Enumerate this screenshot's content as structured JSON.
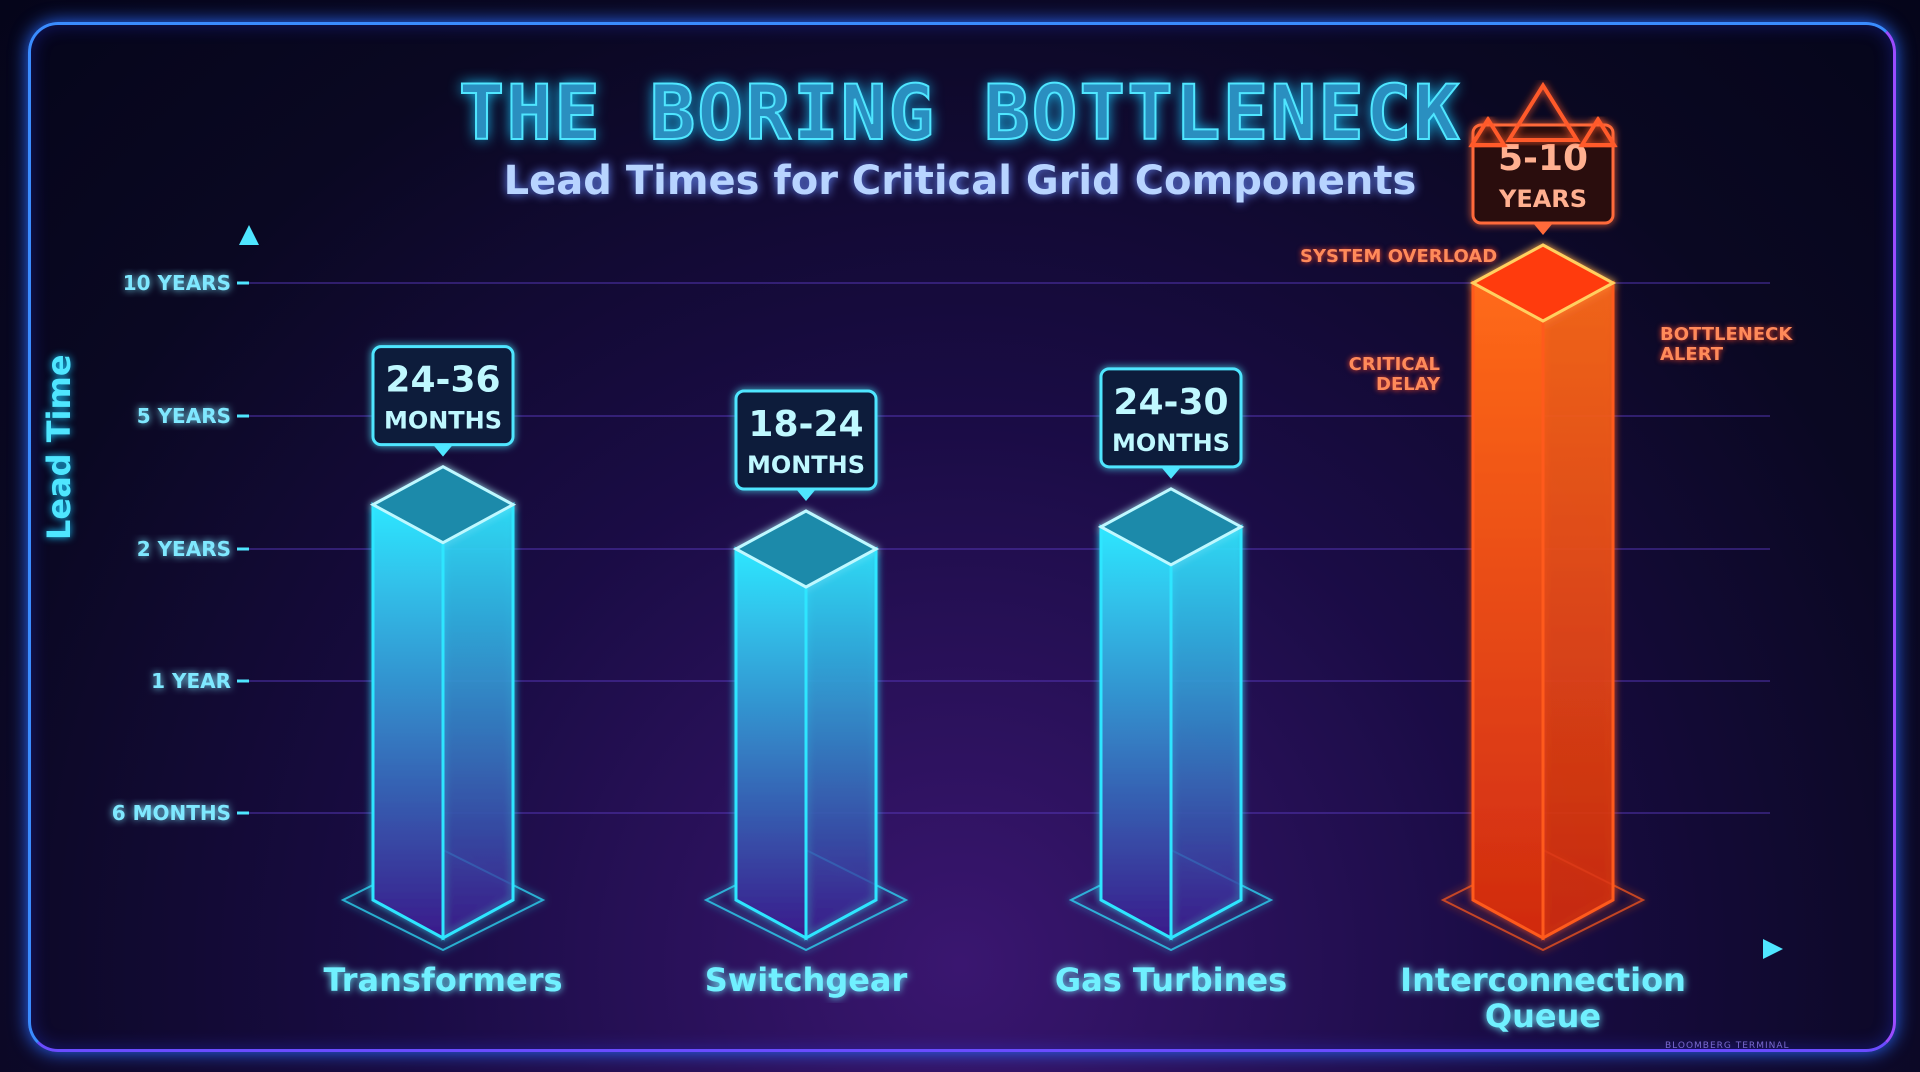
{
  "chart_data": {
    "type": "bar",
    "title": "THE BORING BOTTLENECK",
    "subtitle": "Lead Times for Critical Grid Components",
    "ylabel": "Lead Time",
    "xlabel": "",
    "y_ticks": [
      {
        "label": "6 MONTHS",
        "months": 6
      },
      {
        "label": "1 YEAR",
        "months": 12
      },
      {
        "label": "2 YEARS",
        "months": 24
      },
      {
        "label": "5 YEARS",
        "months": 60
      },
      {
        "label": "10 YEARS",
        "months": 120
      }
    ],
    "y_scale": "ordinal (evenly spaced ticks)",
    "grid": true,
    "categories": [
      "Transformers",
      "Switchgear",
      "Gas Turbines",
      "Interconnection Queue"
    ],
    "ranges_months": [
      [
        24,
        36
      ],
      [
        18,
        24
      ],
      [
        24,
        30
      ],
      [
        60,
        120
      ]
    ],
    "data_labels": [
      {
        "value": "24-36",
        "unit": "MONTHS"
      },
      {
        "value": "18-24",
        "unit": "MONTHS"
      },
      {
        "value": "24-30",
        "unit": "MONTHS"
      },
      {
        "value": "5-10",
        "unit": "YEARS"
      }
    ],
    "colors": {
      "normal": "#2ee6ff",
      "critical": "#ff5a1a"
    },
    "annotations": [
      "SYSTEM OVERLOAD",
      "CRITICAL DELAY",
      "BOTTLENECK ALERT"
    ]
  },
  "footer": "BLOOMBERG TERMINAL"
}
